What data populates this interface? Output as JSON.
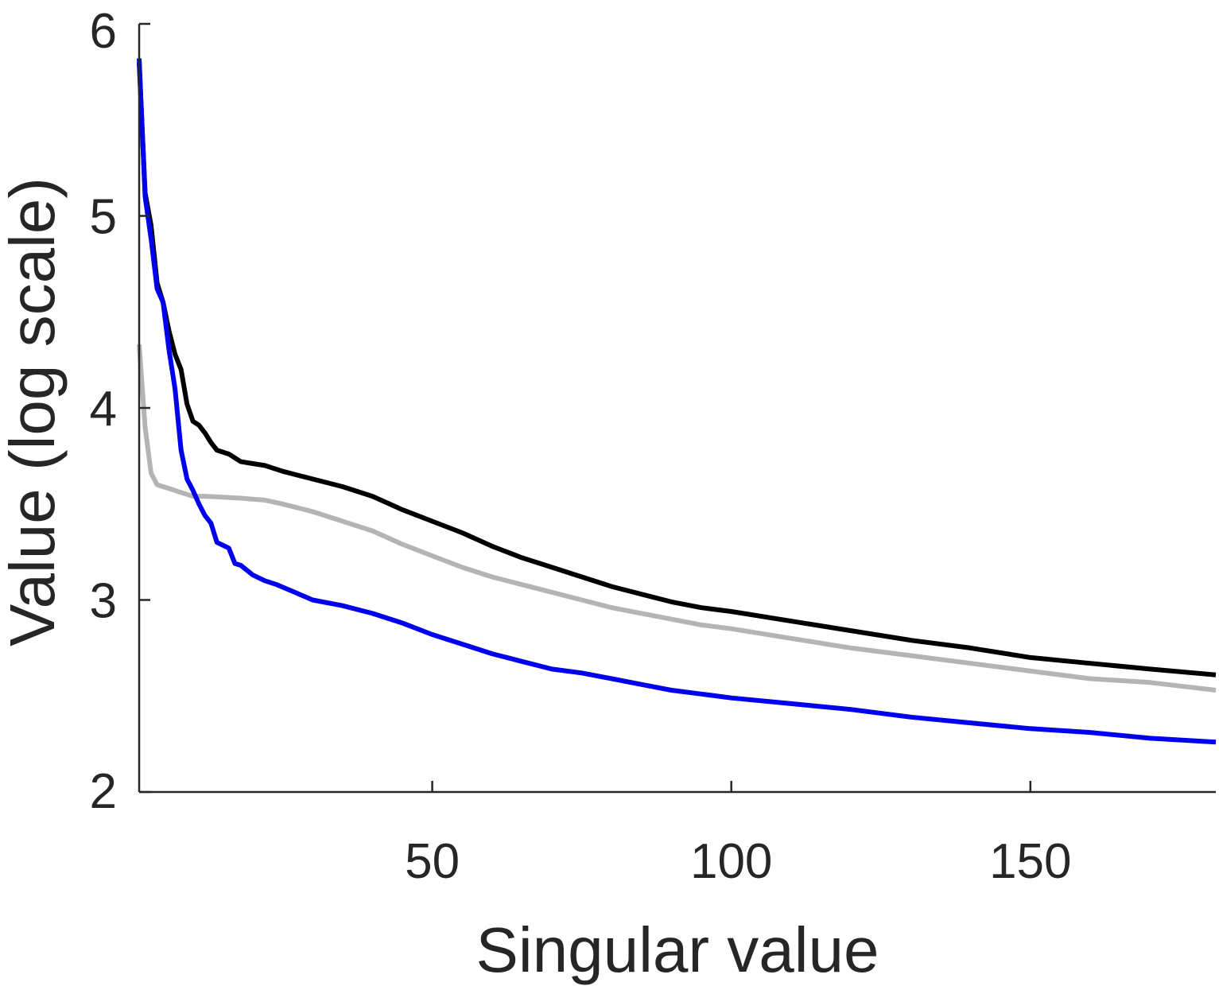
{
  "chart_data": {
    "type": "line",
    "title": "",
    "xlabel": "Singular value",
    "ylabel": "Value (log scale)",
    "xlim": [
      1,
      181
    ],
    "ylim": [
      2,
      6
    ],
    "x_ticks": [
      50,
      100,
      150
    ],
    "y_ticks": [
      2,
      3,
      4,
      5,
      6
    ],
    "grid": false,
    "legend": "none",
    "series": [
      {
        "color": "#000000",
        "points": [
          [
            1,
            5.8
          ],
          [
            2,
            5.12
          ],
          [
            3,
            4.95
          ],
          [
            4,
            4.65
          ],
          [
            5,
            4.55
          ],
          [
            6,
            4.4
          ],
          [
            7,
            4.28
          ],
          [
            8,
            4.2
          ],
          [
            9,
            4.02
          ],
          [
            10,
            3.93
          ],
          [
            11,
            3.91
          ],
          [
            12,
            3.87
          ],
          [
            13,
            3.82
          ],
          [
            14,
            3.78
          ],
          [
            16,
            3.76
          ],
          [
            18,
            3.72
          ],
          [
            20,
            3.71
          ],
          [
            22,
            3.7
          ],
          [
            25,
            3.67
          ],
          [
            30,
            3.63
          ],
          [
            35,
            3.59
          ],
          [
            40,
            3.54
          ],
          [
            45,
            3.47
          ],
          [
            50,
            3.41
          ],
          [
            55,
            3.35
          ],
          [
            60,
            3.28
          ],
          [
            65,
            3.22
          ],
          [
            70,
            3.17
          ],
          [
            75,
            3.12
          ],
          [
            80,
            3.07
          ],
          [
            85,
            3.03
          ],
          [
            90,
            2.99
          ],
          [
            95,
            2.96
          ],
          [
            100,
            2.94
          ],
          [
            110,
            2.89
          ],
          [
            120,
            2.84
          ],
          [
            130,
            2.79
          ],
          [
            140,
            2.75
          ],
          [
            150,
            2.7
          ],
          [
            160,
            2.67
          ],
          [
            170,
            2.64
          ],
          [
            181,
            2.61
          ]
        ]
      },
      {
        "color": "#b4b4b4",
        "points": [
          [
            1,
            4.33
          ],
          [
            2,
            3.9
          ],
          [
            3,
            3.66
          ],
          [
            4,
            3.6
          ],
          [
            5,
            3.59
          ],
          [
            6,
            3.58
          ],
          [
            7,
            3.57
          ],
          [
            8,
            3.56
          ],
          [
            9,
            3.55
          ],
          [
            10,
            3.54
          ],
          [
            12,
            3.54
          ],
          [
            15,
            3.535
          ],
          [
            18,
            3.53
          ],
          [
            20,
            3.525
          ],
          [
            22,
            3.52
          ],
          [
            25,
            3.5
          ],
          [
            30,
            3.46
          ],
          [
            35,
            3.41
          ],
          [
            40,
            3.36
          ],
          [
            45,
            3.29
          ],
          [
            50,
            3.23
          ],
          [
            55,
            3.17
          ],
          [
            60,
            3.12
          ],
          [
            65,
            3.08
          ],
          [
            70,
            3.04
          ],
          [
            75,
            3.0
          ],
          [
            80,
            2.96
          ],
          [
            85,
            2.93
          ],
          [
            90,
            2.9
          ],
          [
            95,
            2.87
          ],
          [
            100,
            2.85
          ],
          [
            110,
            2.8
          ],
          [
            120,
            2.75
          ],
          [
            130,
            2.71
          ],
          [
            140,
            2.67
          ],
          [
            150,
            2.63
          ],
          [
            160,
            2.59
          ],
          [
            170,
            2.57
          ],
          [
            181,
            2.53
          ]
        ]
      },
      {
        "color": "#0000ee",
        "points": [
          [
            1,
            5.82
          ],
          [
            2,
            5.1
          ],
          [
            3,
            4.88
          ],
          [
            4,
            4.62
          ],
          [
            5,
            4.55
          ],
          [
            6,
            4.3
          ],
          [
            7,
            4.1
          ],
          [
            8,
            3.78
          ],
          [
            9,
            3.63
          ],
          [
            10,
            3.57
          ],
          [
            11,
            3.5
          ],
          [
            12,
            3.44
          ],
          [
            13,
            3.4
          ],
          [
            14,
            3.3
          ],
          [
            16,
            3.27
          ],
          [
            17,
            3.19
          ],
          [
            18,
            3.18
          ],
          [
            20,
            3.13
          ],
          [
            22,
            3.1
          ],
          [
            24,
            3.08
          ],
          [
            27,
            3.04
          ],
          [
            30,
            3.0
          ],
          [
            35,
            2.97
          ],
          [
            40,
            2.93
          ],
          [
            45,
            2.88
          ],
          [
            50,
            2.82
          ],
          [
            55,
            2.77
          ],
          [
            60,
            2.72
          ],
          [
            65,
            2.68
          ],
          [
            70,
            2.64
          ],
          [
            75,
            2.62
          ],
          [
            80,
            2.59
          ],
          [
            85,
            2.56
          ],
          [
            90,
            2.53
          ],
          [
            95,
            2.51
          ],
          [
            100,
            2.49
          ],
          [
            110,
            2.46
          ],
          [
            120,
            2.43
          ],
          [
            130,
            2.39
          ],
          [
            140,
            2.36
          ],
          [
            150,
            2.33
          ],
          [
            160,
            2.31
          ],
          [
            170,
            2.28
          ],
          [
            181,
            2.26
          ]
        ]
      }
    ]
  }
}
